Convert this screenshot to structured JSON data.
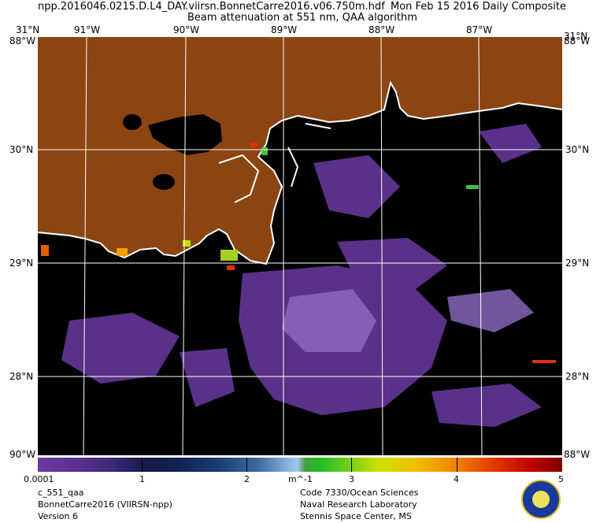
{
  "header": {
    "line1": "npp.2016046.0215.D.L4_DAY.viirsn.BonnetCarre2016.v06.750m.hdf",
    "date": "Mon Feb 15 2016 Daily Composite",
    "line2": "Beam attenuation at 551 nm, QAA algorithm"
  },
  "axes": {
    "top": [
      "31°N",
      "91°W",
      "90°W",
      "89°W",
      "88°W",
      "87°W",
      "31°N"
    ],
    "left_top_corner": "88°W",
    "right_top_corner": "88°W",
    "lat_left": [
      "30°N",
      "29°N",
      "28°N"
    ],
    "lat_right": [
      "30°N",
      "29°N",
      "28°N"
    ],
    "bottom_left": "90°W",
    "bottom_right": "88°W"
  },
  "colorbar": {
    "labels": [
      "0.0001",
      "1",
      "2",
      "m^-1",
      "3",
      "4",
      "5"
    ],
    "min": 0.0001,
    "max": 5,
    "unit": "m^-1"
  },
  "footer": {
    "left": [
      "c_551_qaa",
      "BonnetCarre2016 (VIIRSN-npp)",
      "Version 6"
    ],
    "right": [
      "Code 7330/Ocean Sciences",
      "Naval Research Laboratory",
      "Stennis Space Center, MS"
    ]
  },
  "colors": {
    "land": "#8b4513",
    "water": "#000000",
    "coastline": "#ffffff",
    "low_attenuation": "#6a3aa0"
  },
  "seal_icon": "navy-research-lab-seal"
}
